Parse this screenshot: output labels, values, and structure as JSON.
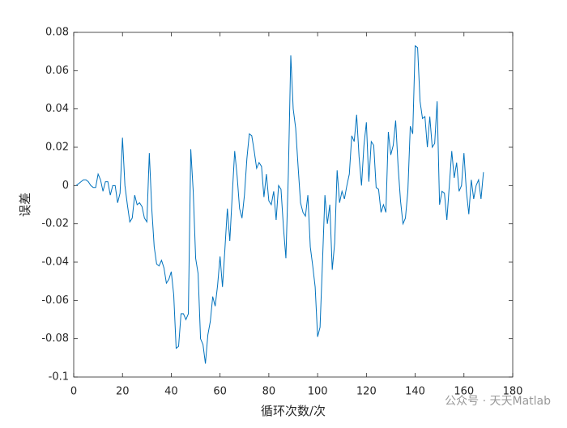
{
  "chart_data": {
    "type": "line",
    "xlabel": "循环次数/次",
    "ylabel": "误差",
    "watermark": "公众号 · 天天Matlab",
    "xlim": [
      0,
      180
    ],
    "xticks": [
      0,
      20,
      40,
      60,
      80,
      100,
      120,
      140,
      160,
      180
    ],
    "ylim": [
      -0.1,
      0.08
    ],
    "yticks": [
      0.08,
      0.06,
      0.04,
      0.02,
      0,
      -0.02,
      -0.04,
      -0.06,
      -0.08,
      -0.1
    ],
    "grid": false,
    "x": [
      1,
      2,
      3,
      4,
      5,
      6,
      7,
      8,
      9,
      10,
      11,
      12,
      13,
      14,
      15,
      16,
      17,
      18,
      19,
      20,
      21,
      22,
      23,
      24,
      25,
      26,
      27,
      28,
      29,
      30,
      31,
      32,
      33,
      34,
      35,
      36,
      37,
      38,
      39,
      40,
      41,
      42,
      43,
      44,
      45,
      46,
      47,
      48,
      49,
      50,
      51,
      52,
      53,
      54,
      55,
      56,
      57,
      58,
      59,
      60,
      61,
      62,
      63,
      64,
      65,
      66,
      67,
      68,
      69,
      70,
      71,
      72,
      73,
      74,
      75,
      76,
      77,
      78,
      79,
      80,
      81,
      82,
      83,
      84,
      85,
      86,
      87,
      88,
      89,
      90,
      91,
      92,
      93,
      94,
      95,
      96,
      97,
      98,
      99,
      100,
      101,
      102,
      103,
      104,
      105,
      106,
      107,
      108,
      109,
      110,
      111,
      112,
      113,
      114,
      115,
      116,
      117,
      118,
      119,
      120,
      121,
      122,
      123,
      124,
      125,
      126,
      127,
      128,
      129,
      130,
      131,
      132,
      133,
      134,
      135,
      136,
      137,
      138,
      139,
      140,
      141,
      142,
      143,
      144,
      145,
      146,
      147,
      148,
      149,
      150,
      151,
      152,
      153,
      154,
      155,
      156,
      157,
      158,
      159,
      160,
      161,
      162,
      163,
      164,
      165,
      166,
      167,
      168
    ],
    "series": [
      {
        "color": "#0072bd",
        "values": [
          0,
          0.001,
          0.002,
          0.003,
          0.003,
          0.002,
          0,
          -0.001,
          -0.001,
          0.006,
          0.003,
          -0.003,
          0.002,
          0.002,
          -0.005,
          0,
          0,
          -0.009,
          -0.004,
          0.025,
          0,
          -0.01,
          -0.019,
          -0.017,
          -0.005,
          -0.01,
          -0.009,
          -0.011,
          -0.017,
          -0.019,
          0.017,
          -0.012,
          -0.032,
          -0.041,
          -0.042,
          -0.039,
          -0.043,
          -0.051,
          -0.049,
          -0.045,
          -0.057,
          -0.085,
          -0.084,
          -0.067,
          -0.067,
          -0.07,
          -0.067,
          0.019,
          -0.003,
          -0.038,
          -0.046,
          -0.08,
          -0.083,
          -0.093,
          -0.078,
          -0.071,
          -0.058,
          -0.063,
          -0.052,
          -0.037,
          -0.053,
          -0.033,
          -0.012,
          -0.029,
          -0.005,
          0.018,
          0.005,
          -0.012,
          -0.017,
          -0.005,
          0.014,
          0.027,
          0.026,
          0.018,
          0.009,
          0.012,
          0.01,
          -0.006,
          0.006,
          -0.008,
          -0.01,
          -0.003,
          -0.018,
          0,
          -0.002,
          -0.022,
          -0.038,
          0.006,
          0.068,
          0.04,
          0.03,
          0.01,
          -0.009,
          -0.014,
          -0.016,
          -0.005,
          -0.032,
          -0.042,
          -0.053,
          -0.079,
          -0.074,
          -0.04,
          -0.005,
          -0.02,
          -0.01,
          -0.044,
          -0.03,
          0.008,
          -0.009,
          -0.003,
          -0.007,
          0,
          0.006,
          0.026,
          0.023,
          0.037,
          0.015,
          0,
          0.021,
          0.033,
          0.002,
          0.023,
          0.021,
          -0.001,
          -0.002,
          -0.014,
          -0.01,
          -0.014,
          0.028,
          0.016,
          0.021,
          0.034,
          0.01,
          -0.008,
          -0.02,
          -0.017,
          -0.003,
          0.031,
          0.027,
          0.073,
          0.072,
          0.044,
          0.035,
          0.036,
          0.02,
          0.036,
          0.02,
          0.022,
          0.044,
          -0.01,
          -0.003,
          -0.004,
          -0.018,
          0,
          0.018,
          0.004,
          0.012,
          -0.003,
          0,
          0.017,
          -0.003,
          -0.015,
          0.003,
          -0.007,
          0,
          0.003,
          -0.007,
          0.007
        ]
      }
    ]
  }
}
